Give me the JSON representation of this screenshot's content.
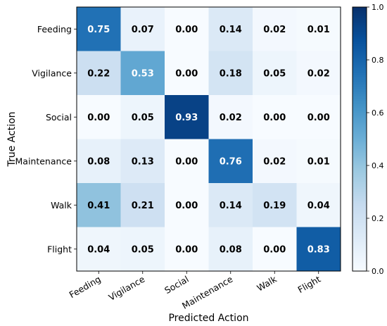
{
  "chart_data": {
    "type": "heatmap",
    "xlabel": "Predicted Action",
    "ylabel": "True Action",
    "x_categories": [
      "Feeding",
      "Vigilance",
      "Social",
      "Maintenance",
      "Walk",
      "Flight"
    ],
    "y_categories": [
      "Feeding",
      "Vigilance",
      "Social",
      "Maintenance",
      "Walk",
      "Flight"
    ],
    "values": [
      [
        0.75,
        0.07,
        0.0,
        0.14,
        0.02,
        0.01
      ],
      [
        0.22,
        0.53,
        0.0,
        0.18,
        0.05,
        0.02
      ],
      [
        0.0,
        0.05,
        0.93,
        0.02,
        0.0,
        0.0
      ],
      [
        0.08,
        0.13,
        0.0,
        0.76,
        0.02,
        0.01
      ],
      [
        0.41,
        0.21,
        0.0,
        0.14,
        0.19,
        0.04
      ],
      [
        0.04,
        0.05,
        0.0,
        0.08,
        0.0,
        0.83
      ]
    ],
    "colorbar": {
      "range": [
        0.0,
        1.0
      ],
      "ticks": [
        "0.0",
        "0.2",
        "0.4",
        "0.6",
        "0.8",
        "1.0"
      ],
      "colormap": "Blues"
    },
    "value_format": "2 decimals, bold"
  }
}
